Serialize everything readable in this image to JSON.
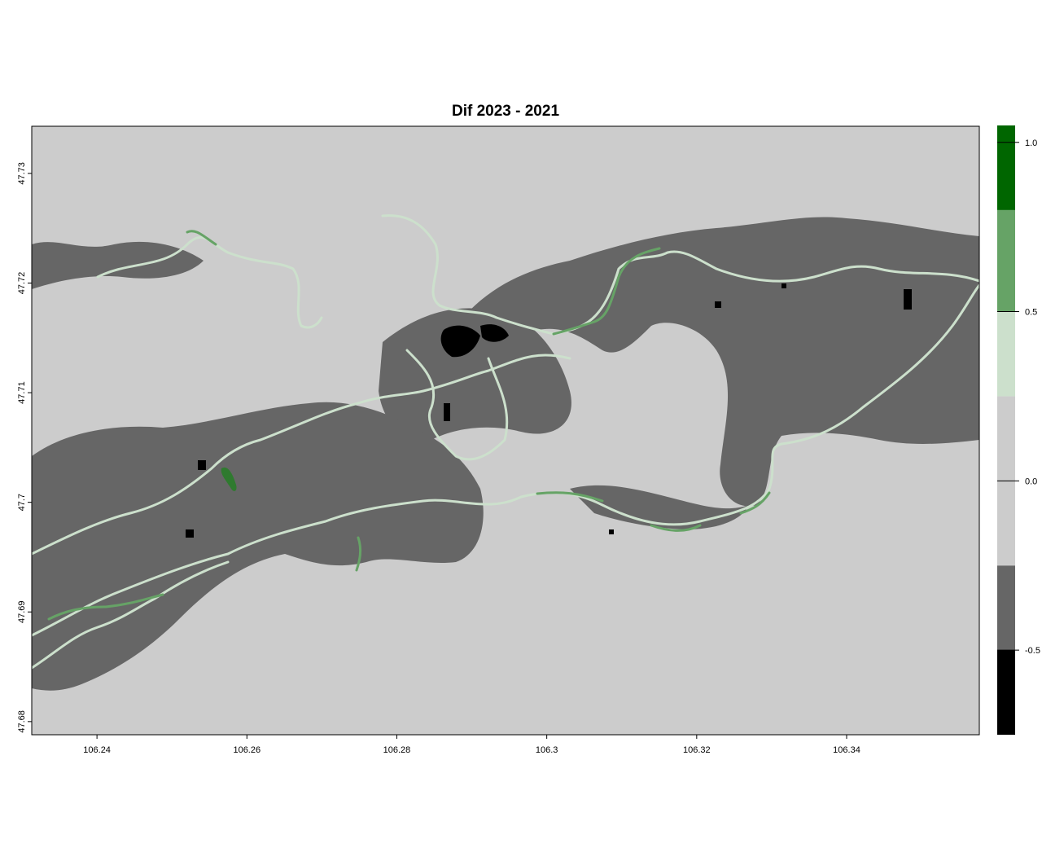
{
  "title": "Dif 2023 - 2021",
  "map": {
    "background_value_color": "#cccccc",
    "x_ticks": [
      "106.24",
      "106.26",
      "106.28",
      "106.3",
      "106.32",
      "106.34"
    ],
    "x_tick_values": [
      106.24,
      106.26,
      106.28,
      106.3,
      106.32,
      106.34
    ],
    "x_range": [
      106.2313,
      106.3577
    ],
    "y_ticks": [
      "47.68",
      "47.69",
      "47.7",
      "47.71",
      "47.72",
      "47.73"
    ],
    "y_tick_values": [
      47.68,
      47.69,
      47.7,
      47.71,
      47.72,
      47.73
    ],
    "y_range": [
      47.6788,
      47.7343
    ]
  },
  "legend": {
    "tick_labels": [
      "1.0",
      "0.5",
      "0.0",
      "-0.5"
    ],
    "tick_values": [
      1.0,
      0.5,
      0.0,
      -0.5
    ],
    "range": [
      -0.75,
      1.05
    ],
    "classes": [
      {
        "from": -0.75,
        "to": -0.5,
        "color": "#000000"
      },
      {
        "from": -0.5,
        "to": -0.25,
        "color": "#666666"
      },
      {
        "from": -0.25,
        "to": 0.25,
        "color": "#cccccc"
      },
      {
        "from": 0.25,
        "to": 0.5,
        "color": "#cce0cc"
      },
      {
        "from": 0.5,
        "to": 0.8,
        "color": "#66a366"
      },
      {
        "from": 0.8,
        "to": 1.05,
        "color": "#006600"
      }
    ]
  }
}
